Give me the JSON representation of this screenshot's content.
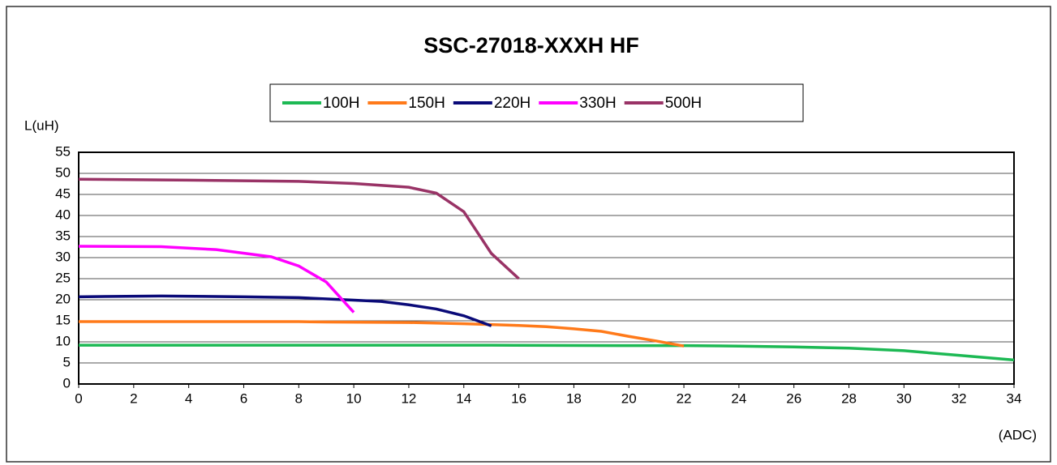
{
  "chart_data": {
    "type": "line",
    "title": "SSC-27018-XXXH HF",
    "ylabel": "L(uH)",
    "xlabel": "(ADC)",
    "xlim": [
      0,
      34
    ],
    "xticks": [
      0,
      2,
      4,
      6,
      8,
      10,
      12,
      14,
      16,
      18,
      20,
      22,
      24,
      26,
      28,
      30,
      32,
      34
    ],
    "ylim": [
      0,
      55
    ],
    "yticks": [
      0,
      5,
      10,
      15,
      20,
      25,
      30,
      35,
      40,
      45,
      50,
      55
    ],
    "grid": true,
    "legend": "top",
    "series": [
      {
        "name": "100H",
        "color": "#1db954",
        "x": [
          0,
          5,
          10,
          15,
          20,
          22,
          24,
          26,
          28,
          30,
          32,
          34
        ],
        "values": [
          9.2,
          9.2,
          9.2,
          9.2,
          9.1,
          9.1,
          9.0,
          8.8,
          8.5,
          7.9,
          6.8,
          5.7
        ]
      },
      {
        "name": "150H",
        "color": "#ff7a1a",
        "x": [
          0,
          4,
          8,
          9,
          12,
          14,
          16,
          17,
          18,
          19,
          20,
          21,
          22
        ],
        "values": [
          14.8,
          14.8,
          14.8,
          14.7,
          14.6,
          14.3,
          13.9,
          13.6,
          13.1,
          12.5,
          11.3,
          10.2,
          9.0
        ]
      },
      {
        "name": "220H",
        "color": "#0a0a78",
        "x": [
          0,
          3,
          6,
          8,
          10,
          11,
          12,
          13,
          14,
          15
        ],
        "values": [
          20.7,
          20.9,
          20.7,
          20.5,
          19.9,
          19.6,
          18.8,
          17.8,
          16.2,
          13.8
        ]
      },
      {
        "name": "330H",
        "color": "#ff00ff",
        "x": [
          0,
          3,
          5,
          7,
          8,
          9,
          10
        ],
        "values": [
          32.7,
          32.6,
          31.9,
          30.2,
          28.0,
          24.2,
          17.0
        ]
      },
      {
        "name": "500H",
        "color": "#993366",
        "x": [
          0,
          4,
          8,
          10,
          12,
          13,
          14,
          15,
          16
        ],
        "values": [
          48.6,
          48.4,
          48.1,
          47.6,
          46.7,
          45.3,
          40.9,
          31.0,
          25.0
        ]
      }
    ]
  }
}
